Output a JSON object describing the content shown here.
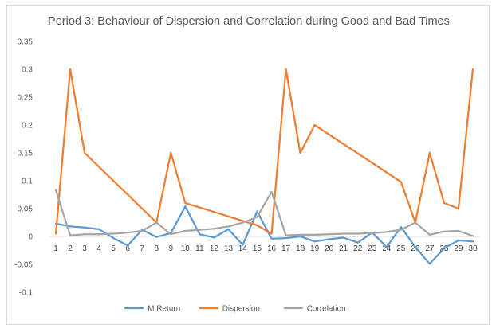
{
  "chart_data": {
    "type": "line",
    "title": "Period 3: Behaviour of Dispersion and Correlation during Good and Bad Times",
    "xlabel": "",
    "ylabel": "",
    "categories": [
      "1",
      "2",
      "3",
      "4",
      "5",
      "6",
      "7",
      "8",
      "9",
      "10",
      "11",
      "12",
      "13",
      "14",
      "15",
      "16",
      "17",
      "18",
      "19",
      "20",
      "21",
      "22",
      "23",
      "24",
      "25",
      "26",
      "27",
      "28",
      "29",
      "30"
    ],
    "ylim": [
      -0.1,
      0.35
    ],
    "yticks": [
      "0.35",
      "0.3",
      "0.25",
      "0.2",
      "0.15",
      "0.1",
      "0.05",
      "0",
      "-0.05",
      "-0.1"
    ],
    "ytick_values": [
      0.35,
      0.3,
      0.25,
      0.2,
      0.15,
      0.1,
      0.05,
      0,
      -0.05,
      -0.1
    ],
    "grid": false,
    "legend_position": "bottom",
    "series": [
      {
        "name": "M Return",
        "color": "#5b9bd5",
        "values": [
          0.023,
          0.018,
          0.016,
          0.013,
          -0.003,
          -0.016,
          0.012,
          -0.001,
          0.006,
          0.054,
          0.004,
          -0.002,
          0.013,
          -0.015,
          0.045,
          -0.004,
          -0.003,
          0.0,
          -0.009,
          -0.005,
          -0.002,
          -0.011,
          0.007,
          -0.019,
          0.017,
          -0.019,
          -0.049,
          -0.021,
          -0.007,
          -0.009
        ]
      },
      {
        "name": "Dispersion",
        "color": "#ed7d31",
        "values": [
          0.005,
          0.3,
          0.15,
          0.125,
          0.1,
          0.075,
          0.05,
          0.025,
          0.15,
          0.06,
          0.052,
          0.044,
          0.036,
          0.028,
          0.02,
          0.005,
          0.3,
          0.15,
          0.2,
          0.183,
          0.166,
          0.149,
          0.132,
          0.115,
          0.098,
          0.025,
          0.15,
          0.06,
          0.05,
          0.3
        ]
      },
      {
        "name": "Correlation",
        "color": "#a5a5a5",
        "values": [
          0.083,
          0.002,
          0.004,
          0.004,
          0.005,
          0.007,
          0.01,
          0.025,
          0.004,
          0.01,
          0.012,
          0.014,
          0.018,
          0.025,
          0.035,
          0.08,
          0.002,
          0.003,
          0.003,
          0.004,
          0.005,
          0.005,
          0.006,
          0.008,
          0.012,
          0.025,
          0.003,
          0.009,
          0.01,
          0.001
        ]
      }
    ]
  }
}
